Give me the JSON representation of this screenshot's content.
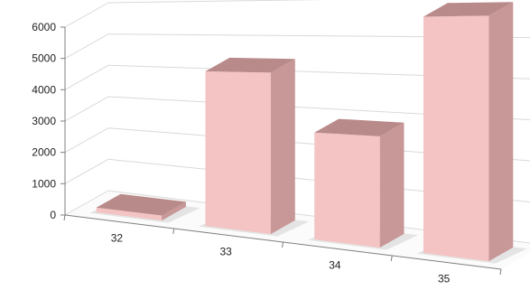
{
  "chart_data": {
    "type": "bar",
    "categories": [
      "32",
      "33",
      "34",
      "35"
    ],
    "values": [
      150,
      4500,
      2900,
      6000
    ],
    "y_ticks": [
      "0",
      "1000",
      "2000",
      "3000",
      "4000",
      "5000",
      "6000"
    ],
    "ylim": [
      0,
      6000
    ],
    "title": "",
    "xlabel": "",
    "ylabel": "",
    "legend": "none",
    "grid": true,
    "bar_color": "#f4c4c4",
    "bar_side_color": "#c89898",
    "bar_top_color": "#b98a8a"
  }
}
